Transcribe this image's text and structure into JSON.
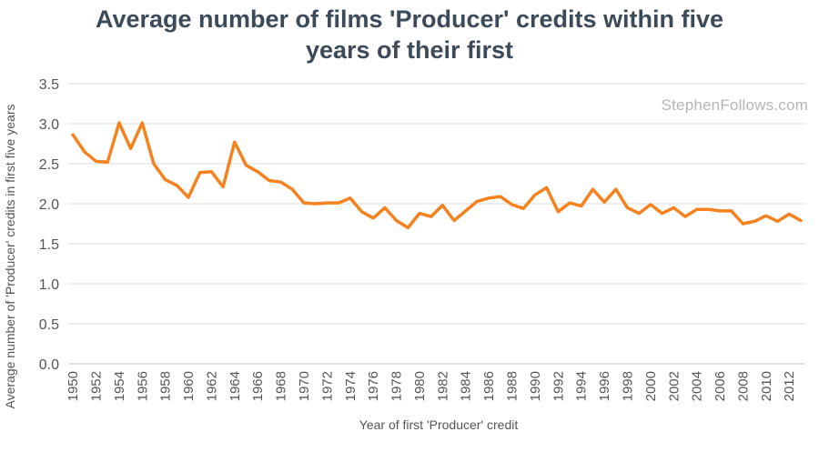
{
  "title_line1": "Average number of films 'Producer' credits within five",
  "title_line2": "years of their first",
  "watermark": "StephenFollows.com",
  "chart_data": {
    "type": "line",
    "title": "Average number of films 'Producer' credits within five years of their first",
    "xlabel": "Year of first 'Producer' credit",
    "ylabel": "Average number of 'Producer' credits in first five years",
    "ylim": [
      0,
      3.5
    ],
    "yticks": [
      "0.0",
      "0.5",
      "1.0",
      "1.5",
      "2.0",
      "2.5",
      "3.0",
      "3.5"
    ],
    "xticks": [
      "1950",
      "1952",
      "1954",
      "1956",
      "1958",
      "1960",
      "1962",
      "1964",
      "1966",
      "1968",
      "1970",
      "1972",
      "1974",
      "1976",
      "1978",
      "1980",
      "1982",
      "1984",
      "1986",
      "1988",
      "1990",
      "1992",
      "1994",
      "1996",
      "1998",
      "2000",
      "2002",
      "2004",
      "2006",
      "2008",
      "2010",
      "2012"
    ],
    "grid": true,
    "line_color": "#f5821f",
    "series": [
      {
        "x": [
          1950,
          1951,
          1952,
          1953,
          1954,
          1955,
          1956,
          1957,
          1958,
          1959,
          1960,
          1961,
          1962,
          1963,
          1964,
          1965,
          1966,
          1967,
          1968,
          1969,
          1970,
          1971,
          1972,
          1973,
          1974,
          1975,
          1976,
          1977,
          1978,
          1979,
          1980,
          1981,
          1982,
          1983,
          1984,
          1985,
          1986,
          1987,
          1988,
          1989,
          1990,
          1991,
          1992,
          1993,
          1994,
          1995,
          1996,
          1997,
          1998,
          1999,
          2000,
          2001,
          2002,
          2003,
          2004,
          2005,
          2006,
          2007,
          2008,
          2009,
          2010,
          2011,
          2012,
          2013
        ],
        "values": [
          2.86,
          2.65,
          2.53,
          2.52,
          3.01,
          2.69,
          3.01,
          2.5,
          2.3,
          2.23,
          2.08,
          2.39,
          2.4,
          2.21,
          2.77,
          2.48,
          2.4,
          2.29,
          2.27,
          2.18,
          2.01,
          2.0,
          2.01,
          2.01,
          2.07,
          1.9,
          1.82,
          1.95,
          1.79,
          1.7,
          1.88,
          1.84,
          1.98,
          1.79,
          1.91,
          2.03,
          2.07,
          2.09,
          1.99,
          1.94,
          2.11,
          2.2,
          1.9,
          2.01,
          1.97,
          2.18,
          2.02,
          2.18,
          1.95,
          1.88,
          1.99,
          1.88,
          1.95,
          1.84,
          1.93,
          1.93,
          1.91,
          1.91,
          1.75,
          1.78,
          1.85,
          1.78,
          1.87,
          1.79
        ]
      }
    ]
  }
}
